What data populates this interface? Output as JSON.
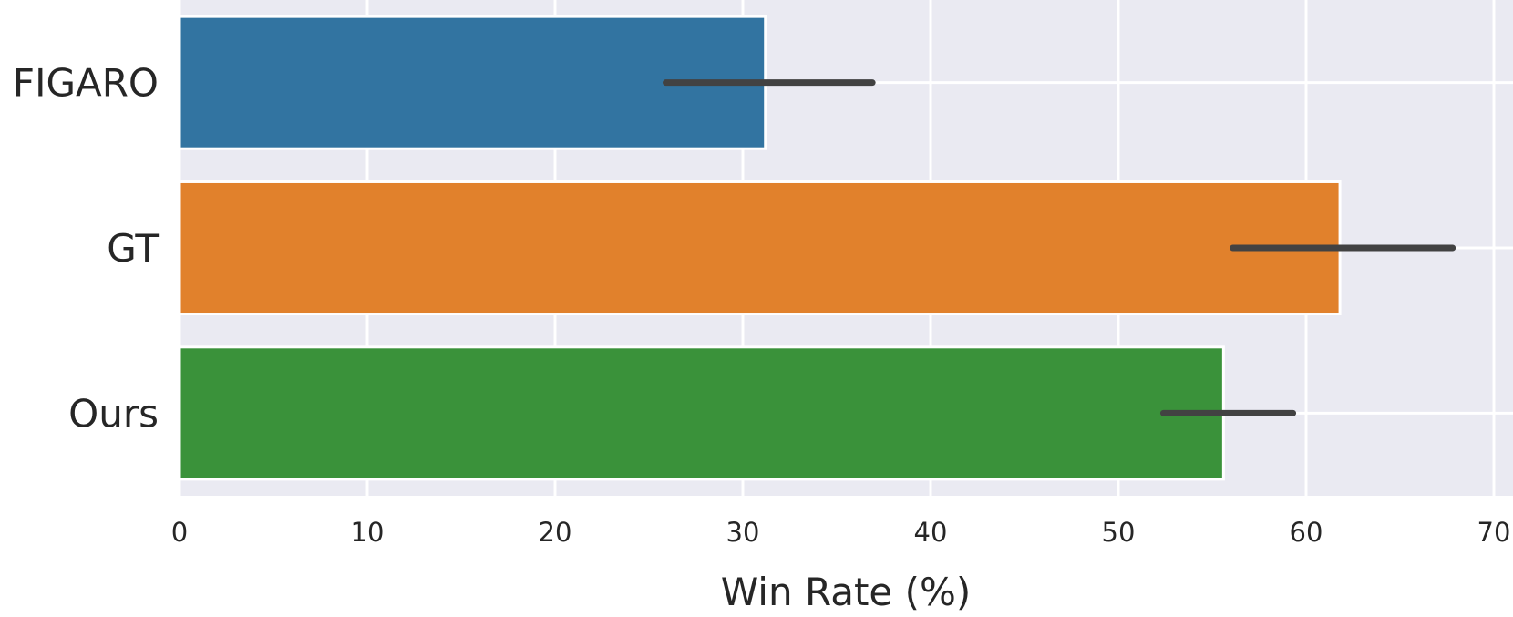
{
  "chart_data": {
    "type": "bar",
    "orientation": "horizontal",
    "categories": [
      "FIGARO",
      "GT",
      "Ours"
    ],
    "values": [
      31.2,
      61.8,
      55.6
    ],
    "error_intervals": [
      [
        25.9,
        36.9
      ],
      [
        56.1,
        67.8
      ],
      [
        52.4,
        59.3
      ]
    ],
    "colors": [
      "#3274a1",
      "#e1812c",
      "#3a923a"
    ],
    "xlabel": "Win Rate (%)",
    "ylabel": "",
    "xlim": [
      0,
      70.8
    ],
    "xticks": [
      0,
      10,
      20,
      30,
      40,
      50,
      60,
      70
    ],
    "grid": true,
    "background": "#eaeaf2",
    "error_bar_color": "#424242"
  }
}
